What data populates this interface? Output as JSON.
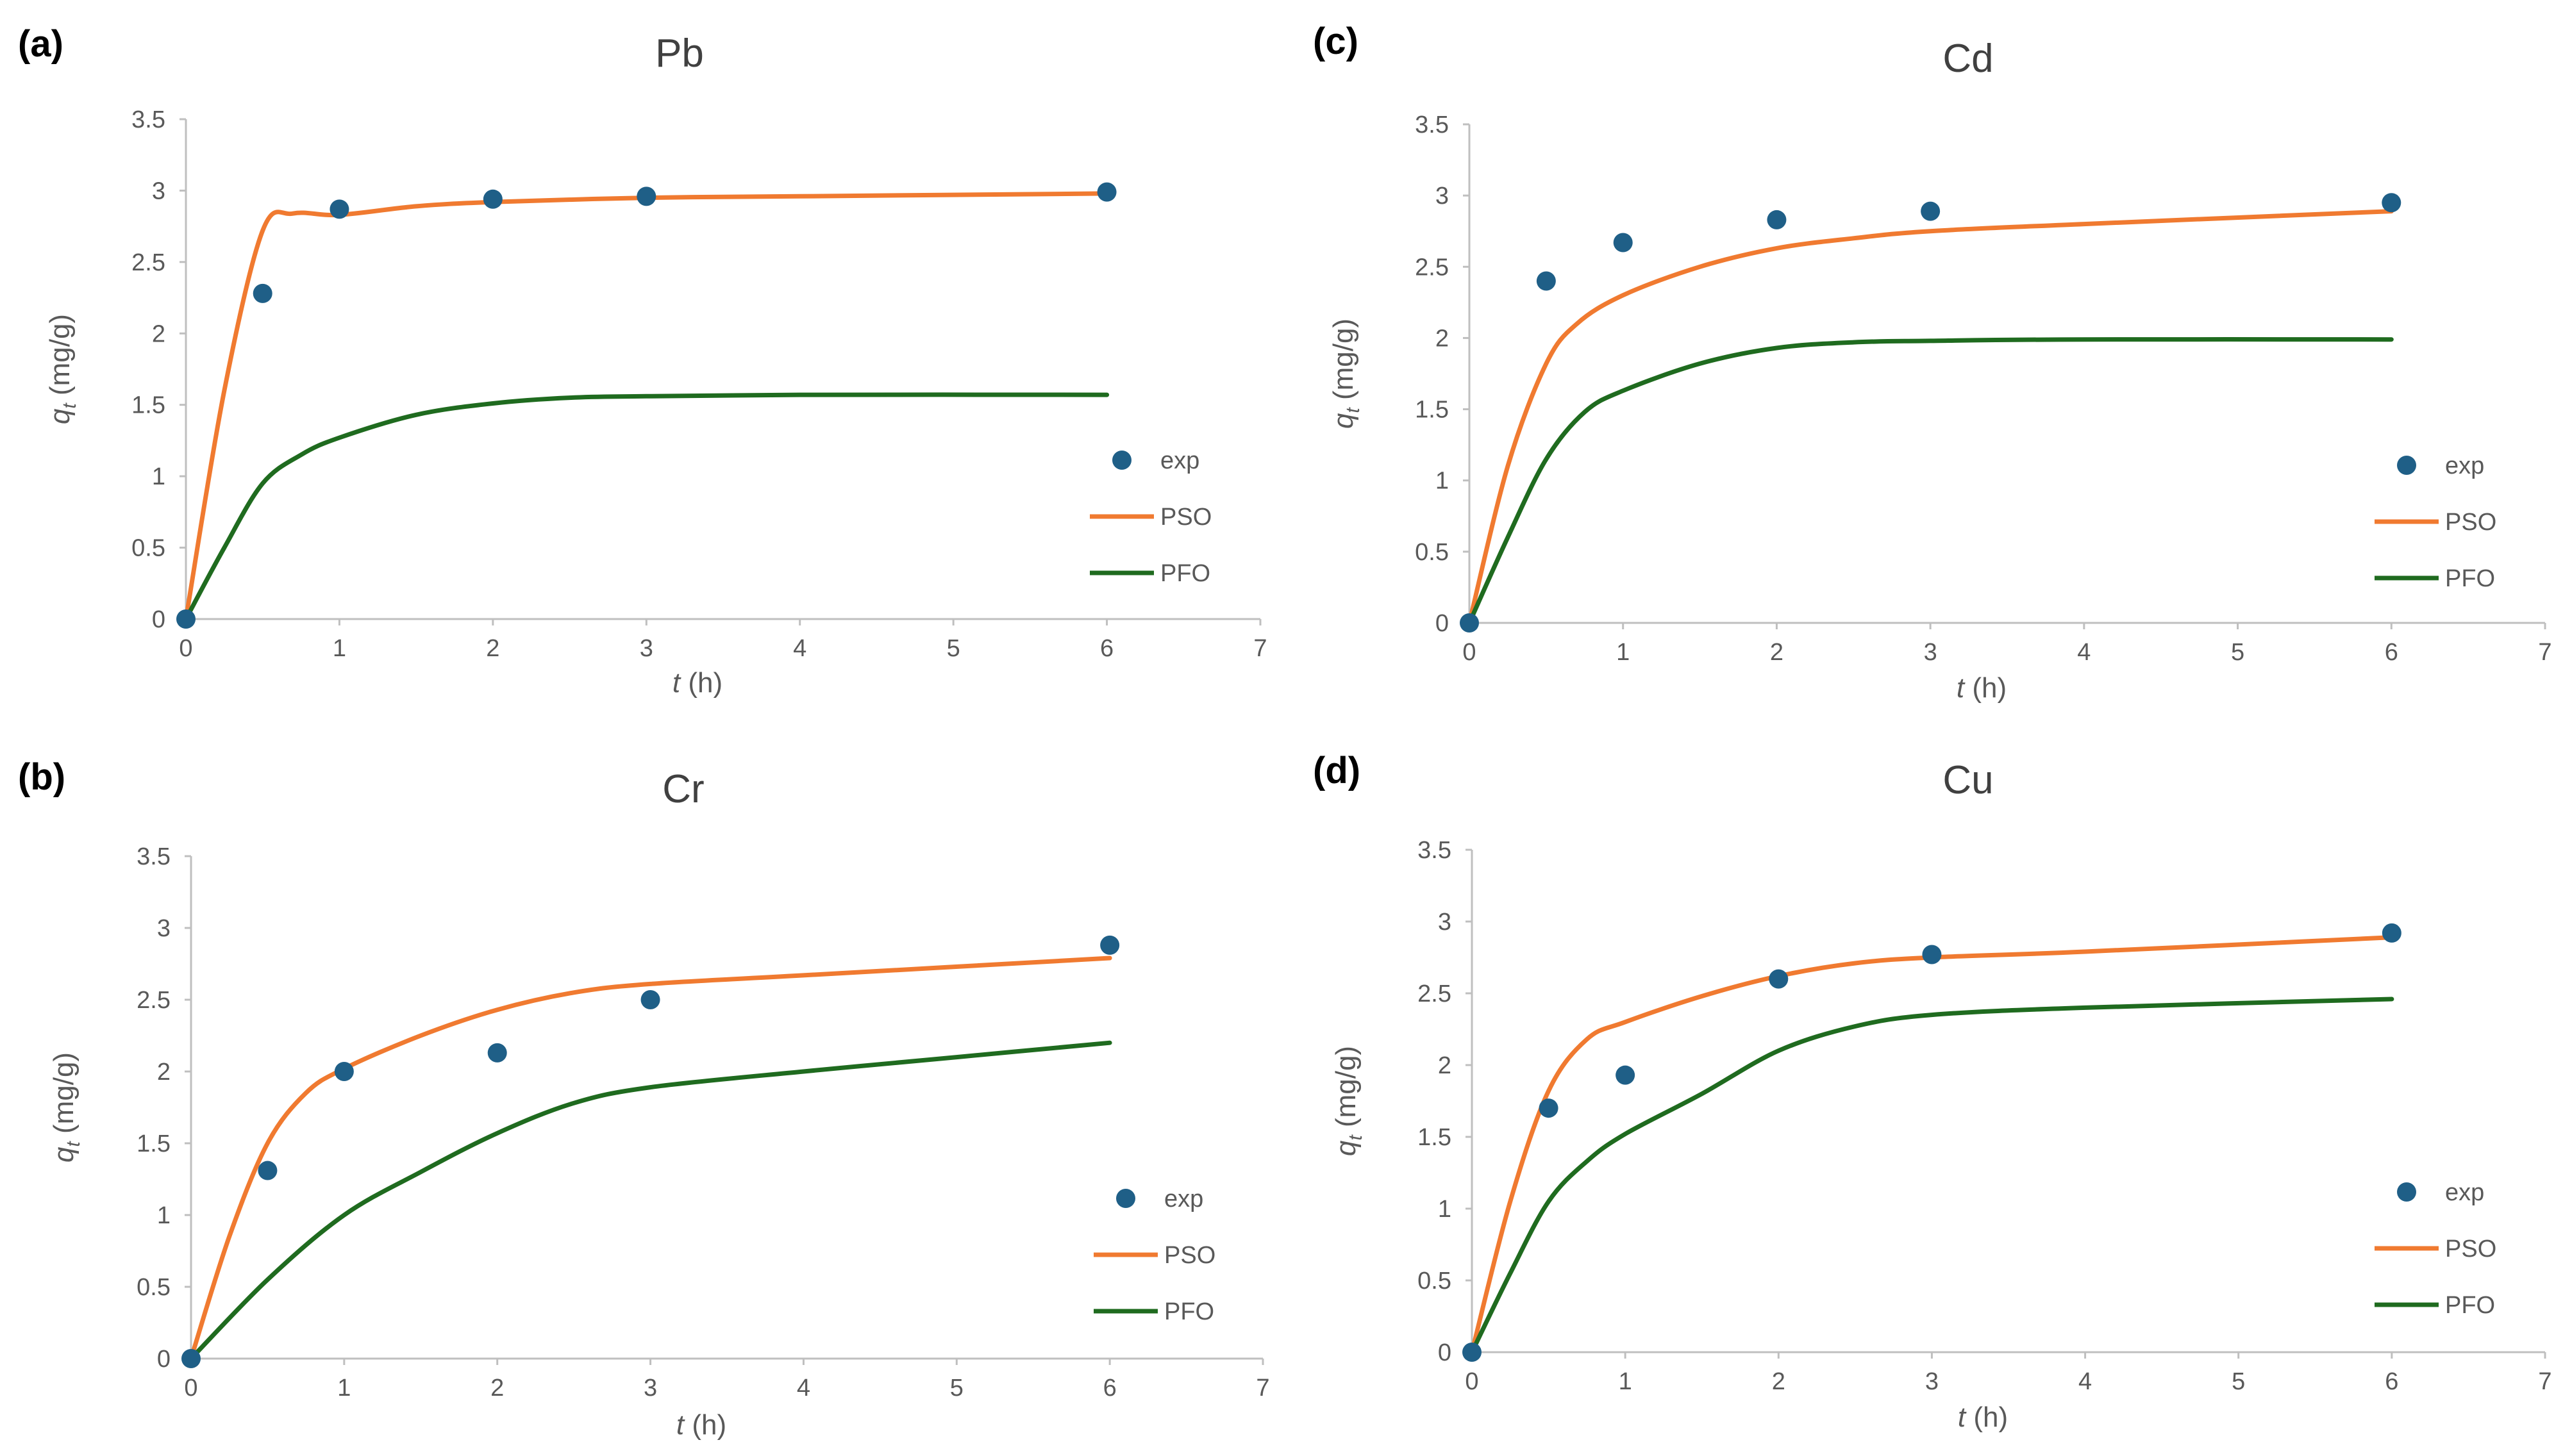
{
  "chart_data": [
    {
      "panel": "(a)",
      "type": "scatter",
      "title": "Pb",
      "xlabel_var": "t",
      "xlabel_unit": " (h)",
      "ylabel_var": "q",
      "ylabel_sub": "t",
      "ylabel_unit": " (mg/g)",
      "xlim": [
        0,
        7
      ],
      "ylim": [
        0,
        3.5
      ],
      "xticks": [
        "0",
        "1",
        "2",
        "3",
        "4",
        "5",
        "6",
        "7"
      ],
      "yticks": [
        "0",
        "0.5",
        "1",
        "1.5",
        "2",
        "2.5",
        "3",
        "3.5"
      ],
      "series": [
        {
          "name": "exp",
          "kind": "points",
          "color": "#1f5f87",
          "x": [
            0,
            0.5,
            1,
            2,
            3,
            6
          ],
          "y": [
            0,
            2.28,
            2.87,
            2.94,
            2.96,
            2.99
          ]
        },
        {
          "name": "PSO",
          "kind": "line",
          "color": "#f07a30",
          "x": [
            0,
            0.25,
            0.5,
            0.7,
            1,
            1.5,
            2,
            3,
            4,
            6
          ],
          "y": [
            0,
            1.6,
            2.72,
            2.84,
            2.83,
            2.89,
            2.92,
            2.95,
            2.96,
            2.98
          ]
        },
        {
          "name": "PFO",
          "kind": "line",
          "color": "#1f6b1f",
          "x": [
            0,
            0.25,
            0.5,
            0.75,
            1,
            1.5,
            2,
            2.5,
            3,
            4,
            6
          ],
          "y": [
            0,
            0.5,
            0.95,
            1.15,
            1.27,
            1.43,
            1.51,
            1.55,
            1.56,
            1.57,
            1.57
          ]
        }
      ]
    },
    {
      "panel": "(b)",
      "type": "scatter",
      "title": "Cr",
      "xlabel_var": "t",
      "xlabel_unit": " (h)",
      "ylabel_var": "q",
      "ylabel_sub": "t",
      "ylabel_unit": " (mg/g)",
      "xlim": [
        0,
        7
      ],
      "ylim": [
        0,
        3.5
      ],
      "xticks": [
        "0",
        "1",
        "2",
        "3",
        "4",
        "5",
        "6",
        "7"
      ],
      "yticks": [
        "0",
        "0.5",
        "1",
        "1.5",
        "2",
        "2.5",
        "3",
        "3.5"
      ],
      "series": [
        {
          "name": "exp",
          "kind": "points",
          "color": "#1f5f87",
          "x": [
            0,
            0.5,
            1,
            2,
            3,
            6
          ],
          "y": [
            0,
            1.31,
            2.0,
            2.13,
            2.5,
            2.88
          ]
        },
        {
          "name": "PSO",
          "kind": "line",
          "color": "#f07a30",
          "x": [
            0,
            0.25,
            0.5,
            0.75,
            1,
            1.5,
            2,
            2.5,
            3,
            4,
            6
          ],
          "y": [
            0,
            0.85,
            1.5,
            1.85,
            2.02,
            2.25,
            2.43,
            2.55,
            2.61,
            2.67,
            2.79
          ]
        },
        {
          "name": "PFO",
          "kind": "line",
          "color": "#1f6b1f",
          "x": [
            0,
            0.5,
            1,
            1.5,
            2,
            2.5,
            3,
            4,
            5,
            6
          ],
          "y": [
            0,
            0.55,
            1.0,
            1.3,
            1.57,
            1.78,
            1.89,
            2.0,
            2.1,
            2.2
          ]
        }
      ]
    },
    {
      "panel": "(c)",
      "type": "scatter",
      "title": "Cd",
      "xlabel_var": "t",
      "xlabel_unit": " (h)",
      "ylabel_var": "q",
      "ylabel_sub": "t",
      "ylabel_unit": " (mg/g)",
      "xlim": [
        0,
        7
      ],
      "ylim": [
        0,
        3.5
      ],
      "xticks": [
        "0",
        "1",
        "2",
        "3",
        "4",
        "5",
        "6",
        "7"
      ],
      "yticks": [
        "0",
        "0.5",
        "1",
        "1.5",
        "2",
        "2.5",
        "3",
        "3.5"
      ],
      "series": [
        {
          "name": "exp",
          "kind": "points",
          "color": "#1f5f87",
          "x": [
            0,
            0.5,
            1,
            2,
            3,
            6
          ],
          "y": [
            0,
            2.4,
            2.67,
            2.83,
            2.89,
            2.95
          ]
        },
        {
          "name": "PSO",
          "kind": "line",
          "color": "#f07a30",
          "x": [
            0,
            0.25,
            0.5,
            0.7,
            1,
            1.5,
            2,
            2.5,
            3,
            4,
            6
          ],
          "y": [
            0,
            1.1,
            1.82,
            2.1,
            2.3,
            2.5,
            2.63,
            2.7,
            2.75,
            2.8,
            2.89
          ]
        },
        {
          "name": "PFO",
          "kind": "line",
          "color": "#1f6b1f",
          "x": [
            0,
            0.25,
            0.5,
            0.75,
            1,
            1.5,
            2,
            2.5,
            3,
            4,
            6
          ],
          "y": [
            0,
            0.6,
            1.15,
            1.48,
            1.63,
            1.82,
            1.93,
            1.97,
            1.98,
            1.99,
            1.99
          ]
        }
      ]
    },
    {
      "panel": "(d)",
      "type": "scatter",
      "title": "Cu",
      "xlabel_var": "t",
      "xlabel_unit": " (h)",
      "ylabel_var": "q",
      "ylabel_sub": "t",
      "ylabel_unit": " (mg/g)",
      "xlim": [
        0,
        7
      ],
      "ylim": [
        0,
        3.5
      ],
      "xticks": [
        "0",
        "1",
        "2",
        "3",
        "4",
        "5",
        "6",
        "7"
      ],
      "yticks": [
        "0",
        "0.5",
        "1",
        "1.5",
        "2",
        "2.5",
        "3",
        "3.5"
      ],
      "series": [
        {
          "name": "exp",
          "kind": "points",
          "color": "#1f5f87",
          "x": [
            0,
            0.5,
            1,
            2,
            3,
            6
          ],
          "y": [
            0,
            1.7,
            1.93,
            2.6,
            2.77,
            2.92
          ]
        },
        {
          "name": "PSO",
          "kind": "line",
          "color": "#f07a30",
          "x": [
            0,
            0.25,
            0.5,
            0.75,
            1,
            1.5,
            2,
            2.5,
            3,
            4,
            6
          ],
          "y": [
            0,
            1.05,
            1.82,
            2.18,
            2.3,
            2.48,
            2.62,
            2.71,
            2.75,
            2.79,
            2.89
          ]
        },
        {
          "name": "PFO",
          "kind": "line",
          "color": "#1f6b1f",
          "x": [
            0,
            0.25,
            0.5,
            0.75,
            1,
            1.5,
            2,
            2.5,
            3,
            4,
            6
          ],
          "y": [
            0,
            0.55,
            1.05,
            1.33,
            1.52,
            1.8,
            2.1,
            2.27,
            2.35,
            2.4,
            2.46
          ]
        }
      ]
    }
  ]
}
